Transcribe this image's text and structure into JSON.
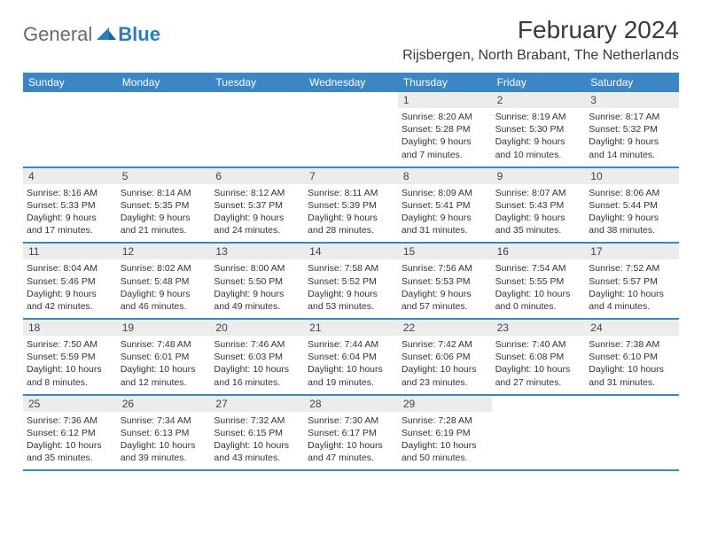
{
  "logo": {
    "text1": "General",
    "text2": "Blue"
  },
  "header": {
    "month_title": "February 2024",
    "location": "Rijsbergen, North Brabant, The Netherlands"
  },
  "styling": {
    "header_bar_color": "#3d86c6",
    "header_bar_text_color": "#ffffff",
    "daynum_bg": "#ececec",
    "week_border_color": "#3d86c6",
    "body_text_color": "#333333",
    "logo_gray": "#6a6a6a",
    "logo_blue": "#2b7dc0",
    "title_fontsize": 28,
    "location_fontsize": 16,
    "dayname_fontsize": 12,
    "cell_fontsize": 10.5,
    "columns": 7
  },
  "daynames": [
    "Sunday",
    "Monday",
    "Tuesday",
    "Wednesday",
    "Thursday",
    "Friday",
    "Saturday"
  ],
  "weeks": [
    [
      {
        "n": "",
        "sr": "",
        "ss": "",
        "dl": ""
      },
      {
        "n": "",
        "sr": "",
        "ss": "",
        "dl": ""
      },
      {
        "n": "",
        "sr": "",
        "ss": "",
        "dl": ""
      },
      {
        "n": "",
        "sr": "",
        "ss": "",
        "dl": ""
      },
      {
        "n": "1",
        "sr": "Sunrise: 8:20 AM",
        "ss": "Sunset: 5:28 PM",
        "dl": "Daylight: 9 hours and 7 minutes."
      },
      {
        "n": "2",
        "sr": "Sunrise: 8:19 AM",
        "ss": "Sunset: 5:30 PM",
        "dl": "Daylight: 9 hours and 10 minutes."
      },
      {
        "n": "3",
        "sr": "Sunrise: 8:17 AM",
        "ss": "Sunset: 5:32 PM",
        "dl": "Daylight: 9 hours and 14 minutes."
      }
    ],
    [
      {
        "n": "4",
        "sr": "Sunrise: 8:16 AM",
        "ss": "Sunset: 5:33 PM",
        "dl": "Daylight: 9 hours and 17 minutes."
      },
      {
        "n": "5",
        "sr": "Sunrise: 8:14 AM",
        "ss": "Sunset: 5:35 PM",
        "dl": "Daylight: 9 hours and 21 minutes."
      },
      {
        "n": "6",
        "sr": "Sunrise: 8:12 AM",
        "ss": "Sunset: 5:37 PM",
        "dl": "Daylight: 9 hours and 24 minutes."
      },
      {
        "n": "7",
        "sr": "Sunrise: 8:11 AM",
        "ss": "Sunset: 5:39 PM",
        "dl": "Daylight: 9 hours and 28 minutes."
      },
      {
        "n": "8",
        "sr": "Sunrise: 8:09 AM",
        "ss": "Sunset: 5:41 PM",
        "dl": "Daylight: 9 hours and 31 minutes."
      },
      {
        "n": "9",
        "sr": "Sunrise: 8:07 AM",
        "ss": "Sunset: 5:43 PM",
        "dl": "Daylight: 9 hours and 35 minutes."
      },
      {
        "n": "10",
        "sr": "Sunrise: 8:06 AM",
        "ss": "Sunset: 5:44 PM",
        "dl": "Daylight: 9 hours and 38 minutes."
      }
    ],
    [
      {
        "n": "11",
        "sr": "Sunrise: 8:04 AM",
        "ss": "Sunset: 5:46 PM",
        "dl": "Daylight: 9 hours and 42 minutes."
      },
      {
        "n": "12",
        "sr": "Sunrise: 8:02 AM",
        "ss": "Sunset: 5:48 PM",
        "dl": "Daylight: 9 hours and 46 minutes."
      },
      {
        "n": "13",
        "sr": "Sunrise: 8:00 AM",
        "ss": "Sunset: 5:50 PM",
        "dl": "Daylight: 9 hours and 49 minutes."
      },
      {
        "n": "14",
        "sr": "Sunrise: 7:58 AM",
        "ss": "Sunset: 5:52 PM",
        "dl": "Daylight: 9 hours and 53 minutes."
      },
      {
        "n": "15",
        "sr": "Sunrise: 7:56 AM",
        "ss": "Sunset: 5:53 PM",
        "dl": "Daylight: 9 hours and 57 minutes."
      },
      {
        "n": "16",
        "sr": "Sunrise: 7:54 AM",
        "ss": "Sunset: 5:55 PM",
        "dl": "Daylight: 10 hours and 0 minutes."
      },
      {
        "n": "17",
        "sr": "Sunrise: 7:52 AM",
        "ss": "Sunset: 5:57 PM",
        "dl": "Daylight: 10 hours and 4 minutes."
      }
    ],
    [
      {
        "n": "18",
        "sr": "Sunrise: 7:50 AM",
        "ss": "Sunset: 5:59 PM",
        "dl": "Daylight: 10 hours and 8 minutes."
      },
      {
        "n": "19",
        "sr": "Sunrise: 7:48 AM",
        "ss": "Sunset: 6:01 PM",
        "dl": "Daylight: 10 hours and 12 minutes."
      },
      {
        "n": "20",
        "sr": "Sunrise: 7:46 AM",
        "ss": "Sunset: 6:03 PM",
        "dl": "Daylight: 10 hours and 16 minutes."
      },
      {
        "n": "21",
        "sr": "Sunrise: 7:44 AM",
        "ss": "Sunset: 6:04 PM",
        "dl": "Daylight: 10 hours and 19 minutes."
      },
      {
        "n": "22",
        "sr": "Sunrise: 7:42 AM",
        "ss": "Sunset: 6:06 PM",
        "dl": "Daylight: 10 hours and 23 minutes."
      },
      {
        "n": "23",
        "sr": "Sunrise: 7:40 AM",
        "ss": "Sunset: 6:08 PM",
        "dl": "Daylight: 10 hours and 27 minutes."
      },
      {
        "n": "24",
        "sr": "Sunrise: 7:38 AM",
        "ss": "Sunset: 6:10 PM",
        "dl": "Daylight: 10 hours and 31 minutes."
      }
    ],
    [
      {
        "n": "25",
        "sr": "Sunrise: 7:36 AM",
        "ss": "Sunset: 6:12 PM",
        "dl": "Daylight: 10 hours and 35 minutes."
      },
      {
        "n": "26",
        "sr": "Sunrise: 7:34 AM",
        "ss": "Sunset: 6:13 PM",
        "dl": "Daylight: 10 hours and 39 minutes."
      },
      {
        "n": "27",
        "sr": "Sunrise: 7:32 AM",
        "ss": "Sunset: 6:15 PM",
        "dl": "Daylight: 10 hours and 43 minutes."
      },
      {
        "n": "28",
        "sr": "Sunrise: 7:30 AM",
        "ss": "Sunset: 6:17 PM",
        "dl": "Daylight: 10 hours and 47 minutes."
      },
      {
        "n": "29",
        "sr": "Sunrise: 7:28 AM",
        "ss": "Sunset: 6:19 PM",
        "dl": "Daylight: 10 hours and 50 minutes."
      },
      {
        "n": "",
        "sr": "",
        "ss": "",
        "dl": ""
      },
      {
        "n": "",
        "sr": "",
        "ss": "",
        "dl": ""
      }
    ]
  ]
}
